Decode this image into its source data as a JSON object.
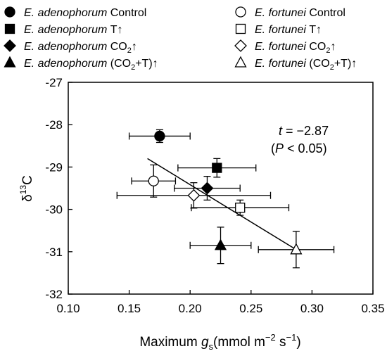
{
  "chart_data": {
    "type": "scatter",
    "xlabel": {
      "pre": "Maximum ",
      "var": "g",
      "sub": "s",
      "units": "(mmol m",
      "exp1": "−2",
      "mid": " s",
      "exp2": "−1",
      "close": ")"
    },
    "ylabel": {
      "delta": "δ",
      "sup": "13",
      "rest": "C"
    },
    "xlim": [
      0.1,
      0.35
    ],
    "ylim": [
      -32,
      -27
    ],
    "x_ticks": [
      "0.10",
      "0.15",
      "0.20",
      "0.25",
      "0.30",
      "0.35"
    ],
    "y_ticks": [
      "-27",
      "-28",
      "-29",
      "-30",
      "-31",
      "-32"
    ],
    "grid": false,
    "legend_placement": "top, two columns",
    "series": [
      {
        "name": "E. adenophorum Control",
        "species": "E. adenophorum",
        "treatment": "Control",
        "marker": "circle",
        "filled": true,
        "x": 0.175,
        "y": -28.27,
        "xerr": 0.025,
        "yerr": 0.15
      },
      {
        "name": "E. adenophorum T↑",
        "species": "E. adenophorum",
        "treatment": "T↑",
        "marker": "square",
        "filled": true,
        "x": 0.222,
        "y": -29.02,
        "xerr": 0.032,
        "yerr": 0.22
      },
      {
        "name": "E. adenophorum CO2↑",
        "species": "E. adenophorum",
        "treatment": "CO2↑",
        "marker": "diamond",
        "filled": true,
        "x": 0.214,
        "y": -29.5,
        "xerr": 0.027,
        "yerr": 0.28
      },
      {
        "name": "E. adenophorum (CO2+T)↑",
        "species": "E. adenophorum",
        "treatment": "(CO2+T)↑",
        "marker": "triangle",
        "filled": true,
        "x": 0.225,
        "y": -30.85,
        "xerr": 0.025,
        "yerr": 0.43
      },
      {
        "name": "E. fortunei Control",
        "species": "E. fortunei",
        "treatment": "Control",
        "marker": "circle",
        "filled": false,
        "x": 0.17,
        "y": -29.33,
        "xerr": 0.018,
        "yerr": 0.38
      },
      {
        "name": "E. fortunei T↑",
        "species": "E. fortunei",
        "treatment": "T↑",
        "marker": "square",
        "filled": false,
        "x": 0.241,
        "y": -29.96,
        "xerr": 0.04,
        "yerr": 0.18
      },
      {
        "name": "E. fortunei CO2↑",
        "species": "E. fortunei",
        "treatment": "CO2↑",
        "marker": "diamond",
        "filled": false,
        "x": 0.203,
        "y": -29.67,
        "xerr": 0.063,
        "yerr": 0.3
      },
      {
        "name": "E. fortunei (CO2+T)↑",
        "species": "E. fortunei",
        "treatment": "(CO2+T)↑",
        "marker": "triangle",
        "filled": false,
        "x": 0.287,
        "y": -30.95,
        "xerr": 0.031,
        "yerr": 0.43
      }
    ],
    "regression_line": {
      "x": [
        0.165,
        0.287
      ],
      "y": [
        -28.8,
        -30.95
      ]
    },
    "annotation": {
      "t_var": "t",
      "t_rest": " = −2.87",
      "p_open": "(",
      "p_var": "P",
      "p_rest": " < 0.05)"
    }
  }
}
